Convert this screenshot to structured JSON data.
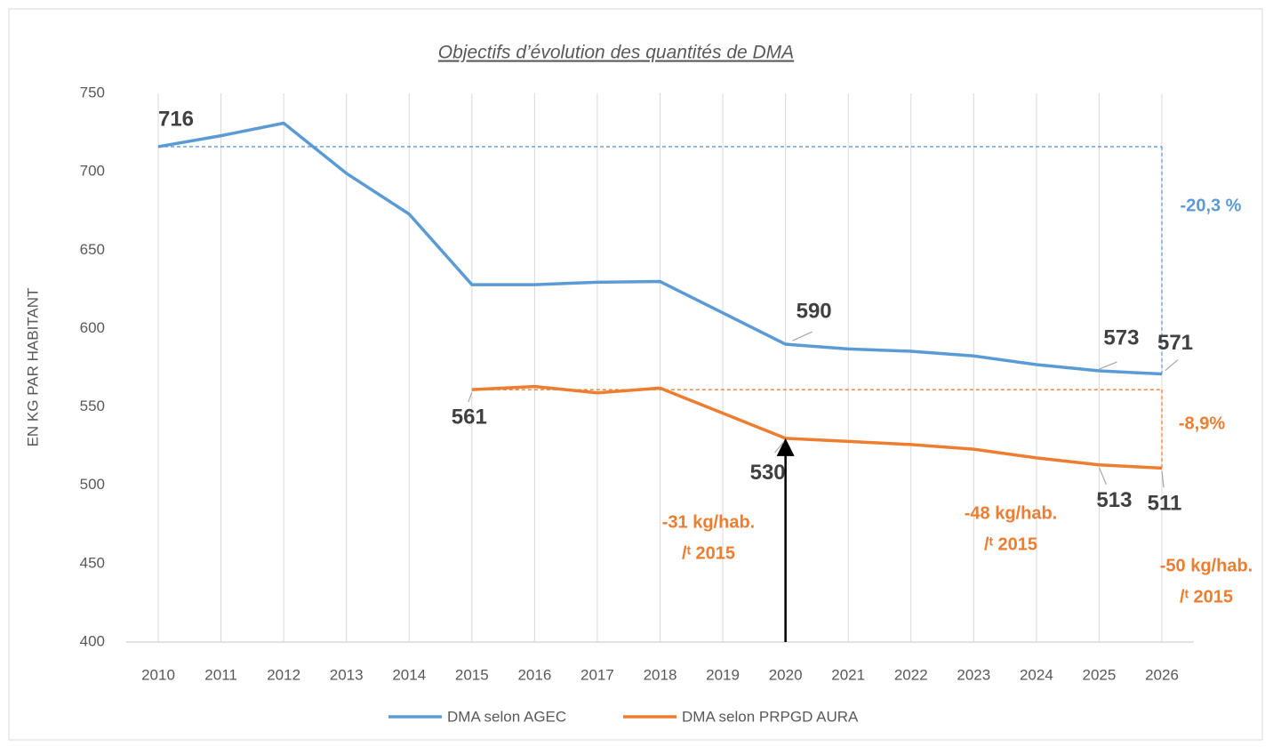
{
  "chart_data": {
    "type": "line",
    "title": "Objectifs d’évolution des quantités de DMA",
    "y_axis_label": "EN KG PAR HABITANT",
    "categories": [
      "2010",
      "2011",
      "2012",
      "2013",
      "2014",
      "2015",
      "2016",
      "2017",
      "2018",
      "2019",
      "2020",
      "2021",
      "2022",
      "2023",
      "2024",
      "2025",
      "2026"
    ],
    "ylim": [
      400,
      750
    ],
    "yticks": [
      400,
      450,
      500,
      550,
      600,
      650,
      700,
      750
    ],
    "grid": "vertical",
    "legend": "bottom",
    "series": [
      {
        "name": "DMA selon AGEC",
        "color": "#5b9bd5",
        "values": [
          716,
          723,
          731,
          699,
          673,
          628,
          628,
          629.5,
          630,
          610,
          590,
          587,
          585.5,
          582.5,
          577,
          573,
          571
        ],
        "value_labels": [
          "716",
          null,
          null,
          null,
          null,
          null,
          null,
          null,
          null,
          null,
          "590",
          null,
          null,
          null,
          null,
          "573",
          "571"
        ]
      },
      {
        "name": "DMA selon PRPGD AURA",
        "color": "#ed7d31",
        "values": [
          null,
          null,
          null,
          null,
          null,
          561,
          563,
          559,
          562,
          546,
          530,
          528,
          526,
          523,
          517.5,
          513,
          511
        ],
        "value_labels": [
          null,
          null,
          null,
          null,
          null,
          "561",
          null,
          null,
          null,
          null,
          "530",
          null,
          null,
          null,
          null,
          "513",
          "511"
        ]
      }
    ],
    "annotations": [
      {
        "lines": [
          "-20,3 %"
        ],
        "color": "#5b9bd5"
      },
      {
        "lines": [
          "-8,9%"
        ],
        "color": "#ed7d31"
      },
      {
        "lines": [
          "-31 kg/hab.",
          "/ᵗ 2015"
        ],
        "color": "#ed7d31"
      },
      {
        "lines": [
          "-48 kg/hab.",
          "/ᵗ 2015"
        ],
        "color": "#ed7d31"
      },
      {
        "lines": [
          "-50 kg/hab.",
          "/ᵗ 2015"
        ],
        "color": "#ed7d31"
      }
    ]
  }
}
